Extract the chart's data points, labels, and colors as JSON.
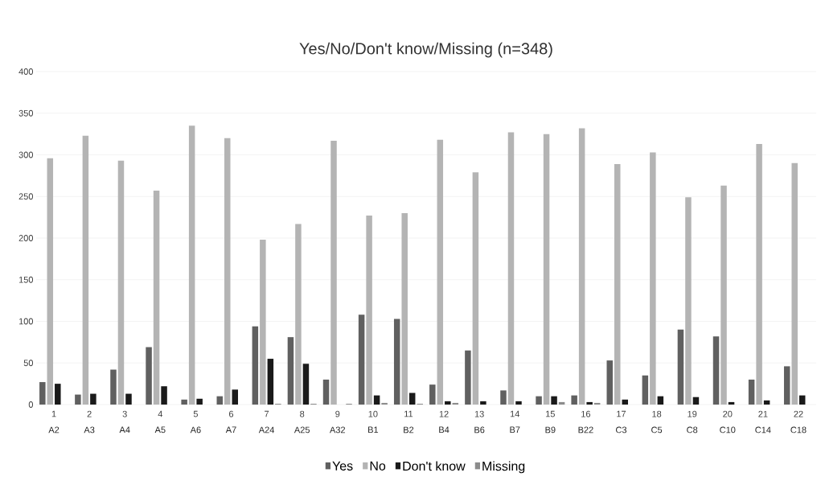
{
  "chart_data": {
    "type": "bar",
    "title": "Yes/No/Don't know/Missing (n=348)",
    "categories": [
      "1",
      "2",
      "3",
      "4",
      "5",
      "6",
      "7",
      "8",
      "9",
      "10",
      "11",
      "12",
      "13",
      "14",
      "15",
      "16",
      "17",
      "18",
      "19",
      "20",
      "21",
      "22"
    ],
    "annotations": [
      "A2",
      "A3",
      "A4",
      "A5",
      "A6",
      "A7",
      "A24",
      "A25",
      "A32",
      "B1",
      "B2",
      "B4",
      "B6",
      "B7",
      "B9",
      "B22",
      "C3",
      "C5",
      "C8",
      "C10",
      "C14",
      "C18"
    ],
    "series": [
      {
        "name": "Yes",
        "color": "#606060",
        "values": [
          27,
          12,
          42,
          69,
          6,
          10,
          94,
          81,
          30,
          108,
          103,
          24,
          65,
          17,
          10,
          11,
          53,
          35,
          90,
          82,
          30,
          46
        ]
      },
      {
        "name": "No",
        "color": "#b4b4b4",
        "values": [
          296,
          323,
          293,
          257,
          335,
          320,
          198,
          217,
          317,
          227,
          230,
          318,
          279,
          327,
          325,
          332,
          289,
          303,
          249,
          263,
          313,
          290
        ]
      },
      {
        "name": "Don't know",
        "color": "#1a1a1a",
        "values": [
          25,
          13,
          13,
          22,
          7,
          18,
          55,
          49,
          0,
          11,
          14,
          4,
          4,
          4,
          10,
          3,
          6,
          10,
          9,
          3,
          5,
          11
        ]
      },
      {
        "name": "Missing",
        "color": "#8c8c8c",
        "values": [
          0,
          0,
          0,
          0,
          0,
          0,
          1,
          1,
          1,
          2,
          1,
          2,
          0,
          0,
          3,
          2,
          0,
          0,
          0,
          0,
          0,
          0
        ]
      }
    ],
    "ylim": [
      0,
      400
    ],
    "yticks": [
      0,
      50,
      100,
      150,
      200,
      250,
      300,
      350,
      400
    ],
    "grid": "y",
    "legend": "bottom"
  }
}
